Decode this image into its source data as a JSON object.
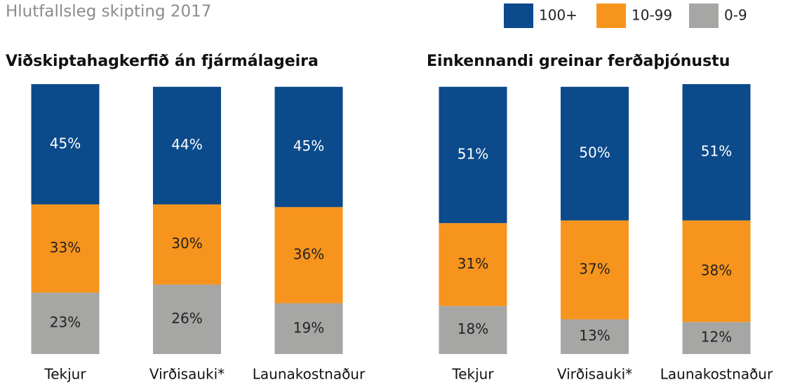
{
  "title": "Hlutfallsleg skipting 2017",
  "legend": {
    "series": [
      {
        "name": "100+",
        "color": "#0b4a8b"
      },
      {
        "name": "10-99",
        "color": "#f7941d"
      },
      {
        "name": "0-9",
        "color": "#a6a6a4"
      }
    ]
  },
  "chart_data": [
    {
      "type": "bar",
      "stacked": true,
      "title": "Viðskiptahagkerfið án fjármálageira",
      "categories": [
        "Tekjur",
        "Virðisauki*",
        "Launakostnaður"
      ],
      "series": [
        {
          "values": [
            45,
            44,
            45
          ],
          "value_labels": [
            "45%",
            "44%",
            "45%"
          ]
        },
        {
          "values": [
            33,
            30,
            36
          ],
          "value_labels": [
            "33%",
            "30%",
            "36%"
          ]
        },
        {
          "values": [
            23,
            26,
            19
          ],
          "value_labels": [
            "23%",
            "26%",
            "19%"
          ]
        }
      ]
    },
    {
      "type": "bar",
      "stacked": true,
      "title": "Einkennandi greinar ferðaþjónustu",
      "categories": [
        "Tekjur",
        "Virðisauki*",
        "Launakostnaður"
      ],
      "series": [
        {
          "values": [
            51,
            50,
            51
          ],
          "value_labels": [
            "51%",
            "50%",
            "51%"
          ]
        },
        {
          "values": [
            31,
            37,
            38
          ],
          "value_labels": [
            "31%",
            "37%",
            "38%"
          ]
        },
        {
          "values": [
            18,
            13,
            12
          ],
          "value_labels": [
            "18%",
            "13%",
            "12%"
          ]
        }
      ]
    }
  ]
}
